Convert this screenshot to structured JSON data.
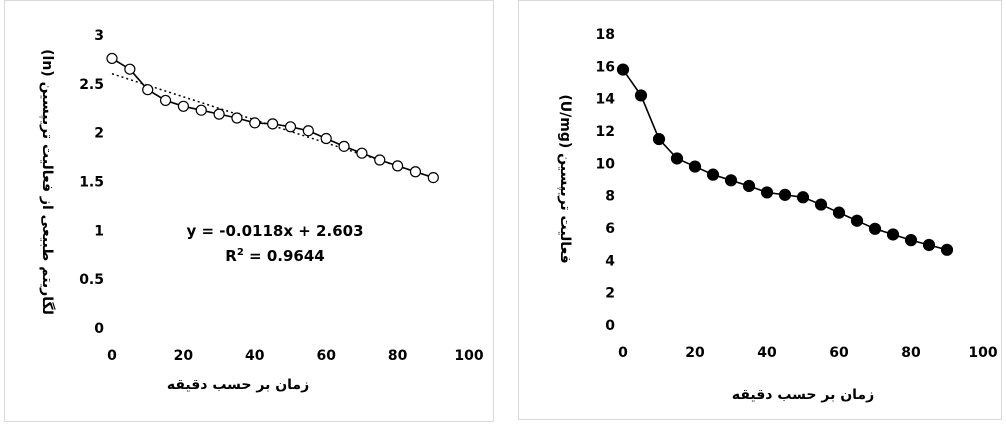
{
  "chart_data": [
    {
      "type": "scatter",
      "title": "",
      "xlabel": "زمان بر حسب دقیقه",
      "ylabel": "لگاریتم طبیعی از فعالیت تریپسین (ln)",
      "xlim": [
        0,
        100
      ],
      "ylim": [
        0,
        3
      ],
      "xticks": [
        "0",
        "20",
        "40",
        "60",
        "80",
        "100"
      ],
      "yticks": [
        "0",
        "0.5",
        "1",
        "1.5",
        "2",
        "2.5",
        "3"
      ],
      "grid": false,
      "series": [
        {
          "marker": "open-circle",
          "color": "#000000",
          "x": [
            0,
            5,
            10,
            15,
            20,
            25,
            30,
            35,
            40,
            45,
            50,
            55,
            60,
            65,
            70,
            75,
            80,
            85,
            90
          ],
          "y": [
            2.76,
            2.65,
            2.44,
            2.33,
            2.27,
            2.23,
            2.19,
            2.15,
            2.1,
            2.09,
            2.06,
            2.02,
            1.94,
            1.86,
            1.79,
            1.72,
            1.66,
            1.6,
            1.54
          ]
        }
      ],
      "trendline": {
        "style": "dotted",
        "slope": -0.0118,
        "intercept": 2.603,
        "x_range": [
          0,
          90
        ],
        "equation": "y = -0.0118x + 2.603",
        "r2_prefix": "R",
        "r2_sup": "2",
        "r2_value": " = 0.9644"
      }
    },
    {
      "type": "line",
      "title": "",
      "xlabel": "زمان بر حسب دقیقه",
      "ylabel": "فعالیت تریپسین (U/mg)",
      "xlim": [
        0,
        100
      ],
      "ylim": [
        0,
        18
      ],
      "xticks": [
        "0",
        "20",
        "40",
        "60",
        "80",
        "100"
      ],
      "yticks": [
        "0",
        "2",
        "4",
        "6",
        "8",
        "10",
        "12",
        "14",
        "16",
        "18"
      ],
      "grid": false,
      "series": [
        {
          "marker": "filled-circle",
          "color": "#000000",
          "x": [
            0,
            5,
            10,
            15,
            20,
            25,
            30,
            35,
            40,
            45,
            50,
            55,
            60,
            65,
            70,
            75,
            80,
            85,
            90
          ],
          "y": [
            15.8,
            14.2,
            11.5,
            10.3,
            9.8,
            9.3,
            8.95,
            8.6,
            8.2,
            8.05,
            7.9,
            7.45,
            6.95,
            6.45,
            5.95,
            5.6,
            5.25,
            4.95,
            4.65
          ]
        }
      ]
    }
  ]
}
